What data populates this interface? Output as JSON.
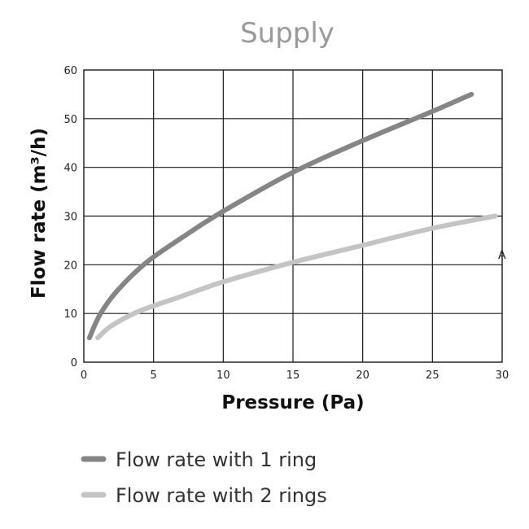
{
  "chart_data": {
    "type": "line",
    "title": "Supply",
    "xlabel": "Pressure (Pa)",
    "ylabel": "Flow rate (m³/h)",
    "xlim": [
      0,
      30
    ],
    "ylim": [
      0,
      60
    ],
    "xticks": [
      0,
      5,
      10,
      15,
      20,
      25,
      30
    ],
    "yticks": [
      0,
      10,
      20,
      30,
      40,
      50,
      60
    ],
    "grid": true,
    "legend_position": "bottom",
    "annotation": "A",
    "series": [
      {
        "name": "Flow rate with 1 ring",
        "color": "#858585",
        "x": [
          0.4,
          1.2,
          2.5,
          4.5,
          7,
          10,
          15,
          20,
          25,
          27.8
        ],
        "y": [
          5,
          10,
          15,
          20.5,
          25.5,
          31,
          39,
          45.5,
          51.5,
          55
        ]
      },
      {
        "name": "Flow rate with 2 rings",
        "color": "#c4c4c4",
        "x": [
          1,
          2,
          4,
          7,
          10,
          15,
          20,
          25,
          29.5
        ],
        "y": [
          5,
          7.5,
          10.5,
          13.5,
          16.5,
          20.5,
          24,
          27.5,
          30
        ]
      }
    ]
  }
}
